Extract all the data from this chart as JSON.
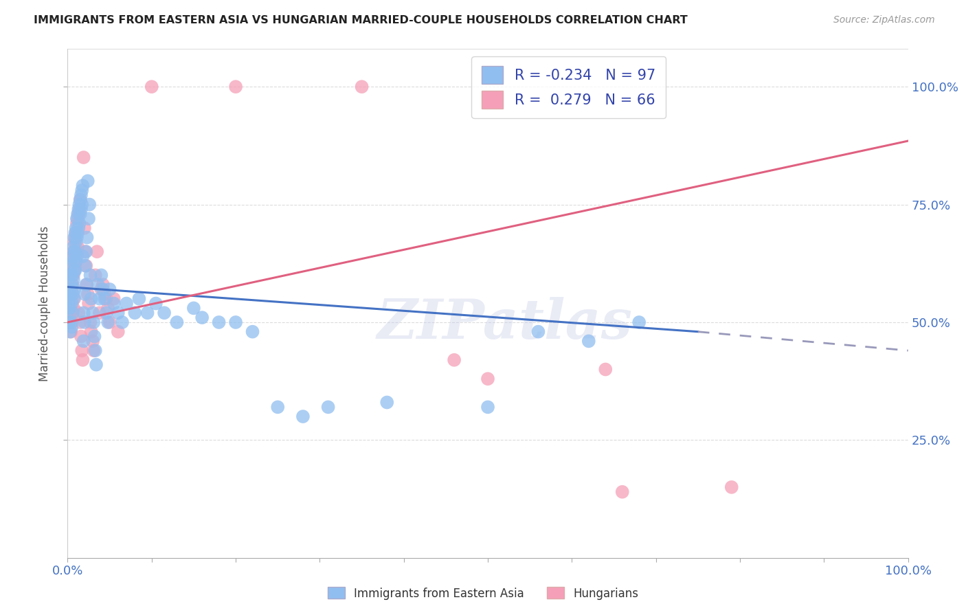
{
  "title": "IMMIGRANTS FROM EASTERN ASIA VS HUNGARIAN MARRIED-COUPLE HOUSEHOLDS CORRELATION CHART",
  "source": "Source: ZipAtlas.com",
  "ylabel": "Married-couple Households",
  "legend_r_blue": "-0.234",
  "legend_n_blue": "97",
  "legend_r_pink": "0.279",
  "legend_n_pink": "66",
  "color_blue": "#90BEF0",
  "color_pink": "#F5A0B8",
  "color_blue_line": "#4472C4",
  "color_pink_line": "#E06080",
  "color_dashed": "#9999BB",
  "watermark_text": "ZIPatlas",
  "blue_trend": [
    0.0,
    0.575,
    0.75,
    0.48
  ],
  "blue_dashed": [
    0.75,
    0.48,
    1.0,
    0.44
  ],
  "pink_trend": [
    0.0,
    0.5,
    1.0,
    0.885
  ],
  "xlim": [
    0.0,
    1.0
  ],
  "ylim": [
    0.0,
    1.08
  ],
  "bg_color": "#FFFFFF",
  "grid_color": "#CCCCCC",
  "blue_x": [
    0.001,
    0.002,
    0.002,
    0.003,
    0.003,
    0.003,
    0.004,
    0.004,
    0.004,
    0.005,
    0.005,
    0.005,
    0.005,
    0.006,
    0.006,
    0.006,
    0.006,
    0.007,
    0.007,
    0.007,
    0.007,
    0.008,
    0.008,
    0.008,
    0.008,
    0.009,
    0.009,
    0.009,
    0.01,
    0.01,
    0.01,
    0.011,
    0.011,
    0.011,
    0.012,
    0.012,
    0.013,
    0.013,
    0.014,
    0.014,
    0.015,
    0.015,
    0.016,
    0.016,
    0.017,
    0.017,
    0.018,
    0.018,
    0.019,
    0.019,
    0.02,
    0.02,
    0.021,
    0.022,
    0.022,
    0.023,
    0.024,
    0.025,
    0.026,
    0.027,
    0.028,
    0.03,
    0.031,
    0.032,
    0.033,
    0.034,
    0.036,
    0.038,
    0.04,
    0.042,
    0.044,
    0.046,
    0.048,
    0.05,
    0.055,
    0.06,
    0.065,
    0.07,
    0.08,
    0.085,
    0.095,
    0.105,
    0.115,
    0.13,
    0.15,
    0.16,
    0.18,
    0.2,
    0.22,
    0.25,
    0.28,
    0.31,
    0.38,
    0.5,
    0.56,
    0.62,
    0.68
  ],
  "blue_y": [
    0.53,
    0.55,
    0.5,
    0.57,
    0.53,
    0.48,
    0.6,
    0.56,
    0.5,
    0.62,
    0.58,
    0.54,
    0.49,
    0.64,
    0.6,
    0.56,
    0.52,
    0.66,
    0.63,
    0.59,
    0.55,
    0.68,
    0.65,
    0.61,
    0.57,
    0.69,
    0.65,
    0.61,
    0.7,
    0.67,
    0.63,
    0.72,
    0.68,
    0.64,
    0.73,
    0.69,
    0.74,
    0.7,
    0.75,
    0.71,
    0.76,
    0.73,
    0.77,
    0.74,
    0.78,
    0.75,
    0.79,
    0.64,
    0.52,
    0.46,
    0.56,
    0.5,
    0.62,
    0.65,
    0.58,
    0.68,
    0.8,
    0.72,
    0.75,
    0.6,
    0.55,
    0.52,
    0.5,
    0.47,
    0.44,
    0.41,
    0.58,
    0.55,
    0.6,
    0.57,
    0.55,
    0.52,
    0.5,
    0.57,
    0.54,
    0.52,
    0.5,
    0.54,
    0.52,
    0.55,
    0.52,
    0.54,
    0.52,
    0.5,
    0.53,
    0.51,
    0.5,
    0.5,
    0.48,
    0.32,
    0.3,
    0.32,
    0.33,
    0.32,
    0.48,
    0.46,
    0.5
  ],
  "pink_x": [
    0.001,
    0.002,
    0.002,
    0.003,
    0.003,
    0.004,
    0.004,
    0.004,
    0.005,
    0.005,
    0.005,
    0.006,
    0.006,
    0.006,
    0.007,
    0.007,
    0.007,
    0.008,
    0.008,
    0.008,
    0.009,
    0.009,
    0.01,
    0.01,
    0.011,
    0.011,
    0.012,
    0.012,
    0.013,
    0.013,
    0.014,
    0.015,
    0.015,
    0.016,
    0.017,
    0.018,
    0.019,
    0.02,
    0.021,
    0.022,
    0.023,
    0.024,
    0.025,
    0.027,
    0.028,
    0.03,
    0.031,
    0.033,
    0.035,
    0.038,
    0.04,
    0.042,
    0.044,
    0.046,
    0.048,
    0.05,
    0.055,
    0.06,
    0.1,
    0.2,
    0.35,
    0.46,
    0.5,
    0.64,
    0.66,
    0.79
  ],
  "pink_y": [
    0.54,
    0.56,
    0.5,
    0.58,
    0.52,
    0.6,
    0.55,
    0.48,
    0.62,
    0.57,
    0.5,
    0.64,
    0.58,
    0.52,
    0.65,
    0.6,
    0.53,
    0.67,
    0.61,
    0.55,
    0.68,
    0.62,
    0.69,
    0.63,
    0.71,
    0.65,
    0.72,
    0.66,
    0.73,
    0.52,
    0.74,
    0.76,
    0.5,
    0.47,
    0.44,
    0.42,
    0.85,
    0.7,
    0.65,
    0.62,
    0.58,
    0.56,
    0.54,
    0.5,
    0.48,
    0.46,
    0.44,
    0.6,
    0.65,
    0.52,
    0.57,
    0.58,
    0.56,
    0.55,
    0.53,
    0.5,
    0.55,
    0.48,
    1.0,
    1.0,
    1.0,
    0.42,
    0.38,
    0.4,
    0.14,
    0.15
  ]
}
